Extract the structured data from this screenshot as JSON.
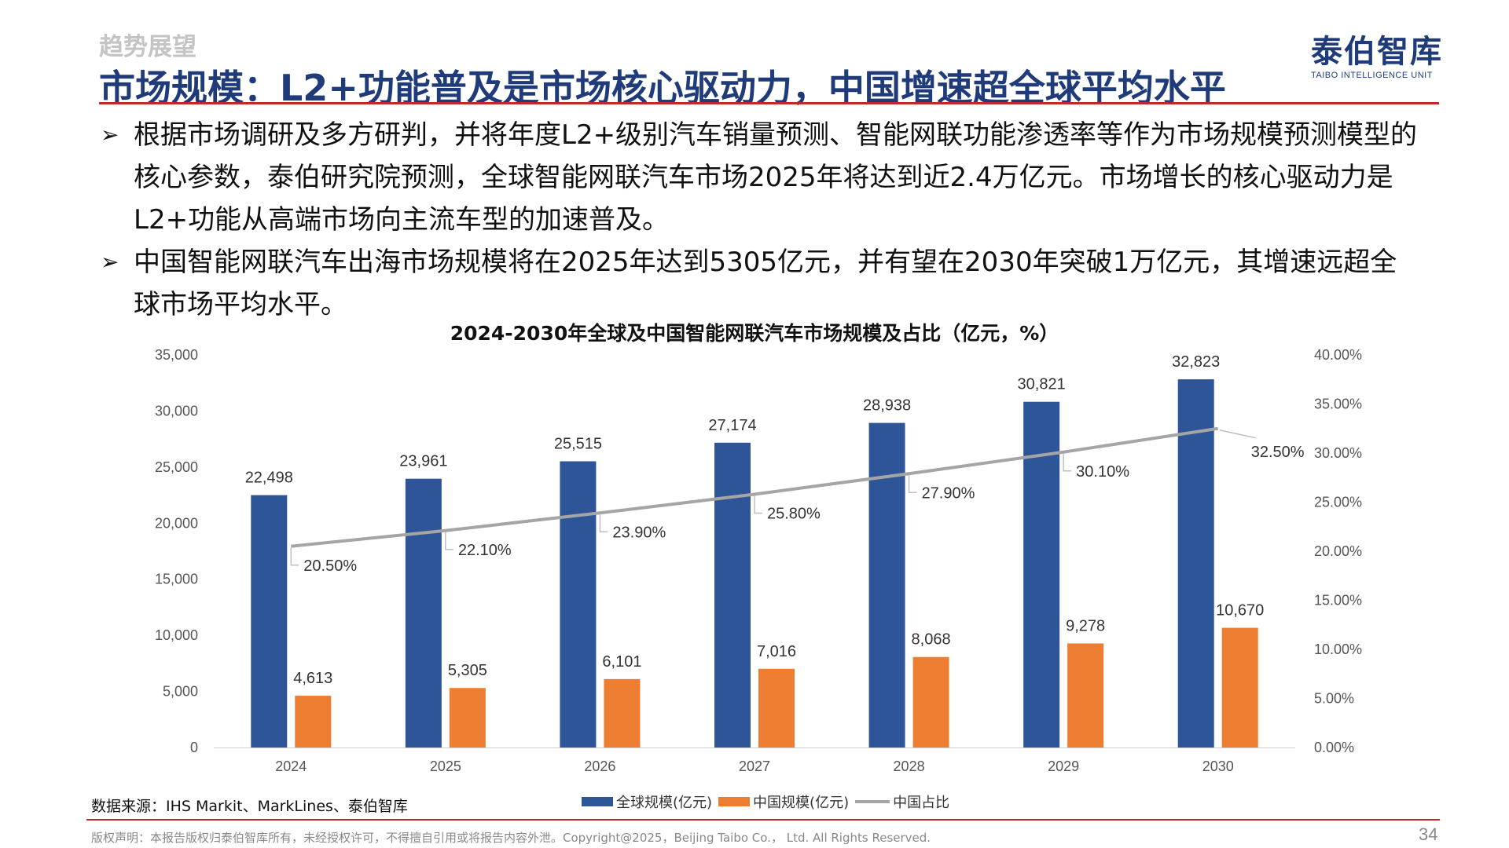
{
  "header": {
    "section_tag": "趋势展望",
    "title": "市场规模：L2+功能普及是市场核心驱动力，中国增速超全球平均水平",
    "brand_cn": "泰伯智库",
    "brand_en": "TAIBO INTELLIGENCE UNIT"
  },
  "bullets": [
    "根据市场调研及多方研判，并将年度L2+级别汽车销量预测、智能网联功能渗透率等作为市场规模预测模型的核心参数，泰伯研究院预测，全球智能网联汽车市场2025年将达到近2.4万亿元。市场增长的核心驱动力是L2+功能从高端市场向主流车型的加速普及。",
    "中国智能网联汽车出海市场规模将在2025年达到5305亿元，并有望在2030年突破1万亿元，其增速远超全球市场平均水平。"
  ],
  "bullet_marker": "➢",
  "chart_data": {
    "type": "bar",
    "title": "2024-2030年全球及中国智能网联汽车市场规模及占比（亿元，%）",
    "categories": [
      "2024",
      "2025",
      "2026",
      "2027",
      "2028",
      "2029",
      "2030"
    ],
    "series": [
      {
        "name": "全球规模(亿元)",
        "type": "bar",
        "axis": "left",
        "color": "#2e5597",
        "values": [
          22498,
          23961,
          25515,
          27174,
          28938,
          30821,
          32823
        ],
        "labels": [
          "22,498",
          "23,961",
          "25,515",
          "27,174",
          "28,938",
          "30,821",
          "32,823"
        ]
      },
      {
        "name": "中国规模(亿元)",
        "type": "bar",
        "axis": "left",
        "color": "#ed7d31",
        "values": [
          4613,
          5305,
          6101,
          7016,
          8068,
          9278,
          10670
        ],
        "labels": [
          "4,613",
          "5,305",
          "6,101",
          "7,016",
          "8,068",
          "9,278",
          "10,670"
        ]
      },
      {
        "name": "中国占比",
        "type": "line",
        "axis": "right",
        "color": "#a5a5a5",
        "values": [
          20.5,
          22.1,
          23.9,
          25.8,
          27.9,
          30.1,
          32.5
        ],
        "labels": [
          "20.50%",
          "22.10%",
          "23.90%",
          "25.80%",
          "27.90%",
          "30.10%",
          "32.50%"
        ]
      }
    ],
    "y_left": {
      "min": 0,
      "max": 35000,
      "ticks": [
        "0",
        "5,000",
        "10,000",
        "15,000",
        "20,000",
        "25,000",
        "30,000",
        "35,000"
      ]
    },
    "y_right": {
      "min": 0,
      "max": 40,
      "ticks": [
        "0.00%",
        "5.00%",
        "10.00%",
        "15.00%",
        "20.00%",
        "25.00%",
        "30.00%",
        "35.00%",
        "40.00%"
      ]
    },
    "grid": false,
    "legend_position": "bottom"
  },
  "footer": {
    "source": "数据来源：IHS Markit、MarkLines、泰伯智库",
    "copyright": "版权声明：本报告版权归泰伯智库所有，未经授权许可，不得擅自引用或将报告内容外泄。Copyright@2025，Beijing Taibo Co.， Ltd. All Rights Reserved.",
    "page_number": "34"
  }
}
